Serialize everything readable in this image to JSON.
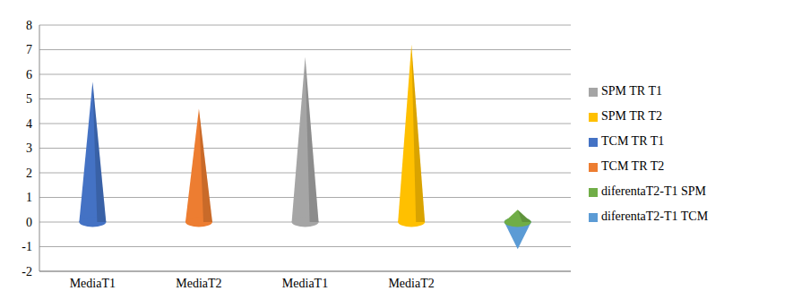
{
  "chart_data": {
    "type": "bar",
    "categories": [
      "MediaT1",
      "MediaT2",
      "MediaT1",
      "MediaT2",
      null
    ],
    "series": [
      {
        "name": "TCM TR T1",
        "color": "#4472c4",
        "values": [
          5.7,
          null,
          null,
          null,
          null
        ]
      },
      {
        "name": "TCM TR T2",
        "color": "#ed7d31",
        "values": [
          null,
          4.6,
          null,
          null,
          null
        ]
      },
      {
        "name": "SPM TR T1",
        "color": "#a5a5a5",
        "values": [
          null,
          null,
          6.7,
          null,
          null
        ]
      },
      {
        "name": "SPM TR T2",
        "color": "#ffc000",
        "values": [
          null,
          null,
          null,
          7.2,
          null
        ]
      },
      {
        "name": "diferentaT2-T1 TCM",
        "color": "#5b9bd5",
        "values": [
          null,
          null,
          null,
          null,
          -1.1
        ]
      },
      {
        "name": "diferentaT2-T1 SPM",
        "color": "#70ad47",
        "values": [
          null,
          null,
          null,
          null,
          0.5
        ]
      }
    ],
    "ylim": [
      -2,
      8
    ],
    "yticks": [
      -2,
      -1,
      0,
      1,
      2,
      3,
      4,
      5,
      6,
      7,
      8
    ],
    "grid": true,
    "legend": "right",
    "stacked": true
  }
}
